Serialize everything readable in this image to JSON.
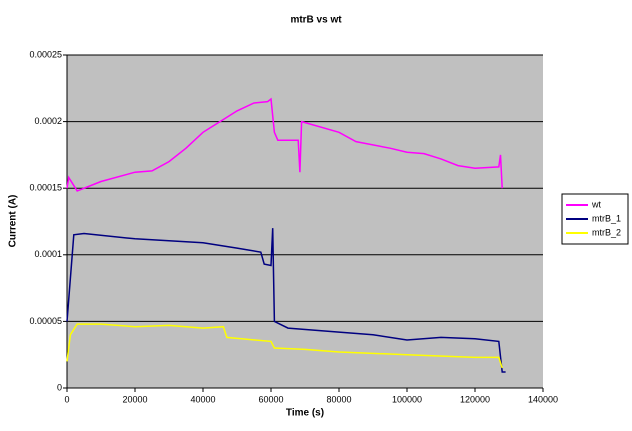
{
  "chart_data": {
    "type": "line",
    "title": "mtrB vs wt",
    "x_label": "Time (s)",
    "y_label": "Current (A)",
    "xlim": [
      0,
      140000
    ],
    "xticks": [
      0,
      20000,
      40000,
      60000,
      80000,
      100000,
      120000,
      140000
    ],
    "ylim": [
      0,
      0.00025
    ],
    "yticks": [
      0,
      5e-05,
      0.0001,
      0.00015,
      0.0002,
      0.00025
    ],
    "grid": true,
    "legend": "right",
    "background": "#c0c0c0",
    "series": [
      {
        "name": "wt",
        "color": "#ff00ff",
        "x": [
          0,
          500,
          3000,
          10000,
          20000,
          25000,
          30000,
          35000,
          40000,
          45000,
          50000,
          55000,
          59000,
          60000,
          61000,
          62000,
          68000,
          68500,
          69000,
          80000,
          85000,
          95000,
          100000,
          105000,
          110000,
          115000,
          120000,
          127000,
          127500,
          128000
        ],
        "values": [
          0.00015,
          0.000158,
          0.000148,
          0.000155,
          0.000162,
          0.000163,
          0.00017,
          0.00018,
          0.000192,
          0.0002,
          0.000208,
          0.000214,
          0.000215,
          0.000217,
          0.000192,
          0.000186,
          0.000186,
          0.000162,
          0.0002,
          0.000192,
          0.000185,
          0.00018,
          0.000177,
          0.000176,
          0.000172,
          0.000167,
          0.000165,
          0.000166,
          0.000175,
          0.00015
        ]
      },
      {
        "name": "mtrB_1",
        "color": "#000080",
        "x": [
          0,
          2000,
          5000,
          20000,
          40000,
          50000,
          57000,
          58000,
          60000,
          60500,
          61000,
          65000,
          80000,
          90000,
          100000,
          110000,
          120000,
          127000,
          128000,
          129000
        ],
        "values": [
          5e-05,
          0.000115,
          0.000116,
          0.000112,
          0.000109,
          0.000105,
          0.000102,
          9.3e-05,
          9.2e-05,
          0.00012,
          5e-05,
          4.5e-05,
          4.2e-05,
          4e-05,
          3.6e-05,
          3.8e-05,
          3.7e-05,
          3.5e-05,
          1.2e-05,
          1.2e-05
        ]
      },
      {
        "name": "mtrB_2",
        "color": "#ffff00",
        "x": [
          0,
          1000,
          3000,
          10000,
          20000,
          30000,
          40000,
          46000,
          47000,
          60000,
          61000,
          70000,
          80000,
          100000,
          120000,
          127000,
          128000
        ],
        "values": [
          2e-05,
          4e-05,
          4.8e-05,
          4.8e-05,
          4.6e-05,
          4.7e-05,
          4.5e-05,
          4.6e-05,
          3.8e-05,
          3.5e-05,
          3e-05,
          2.9e-05,
          2.7e-05,
          2.5e-05,
          2.3e-05,
          2.3e-05,
          1.5e-05
        ]
      }
    ]
  }
}
